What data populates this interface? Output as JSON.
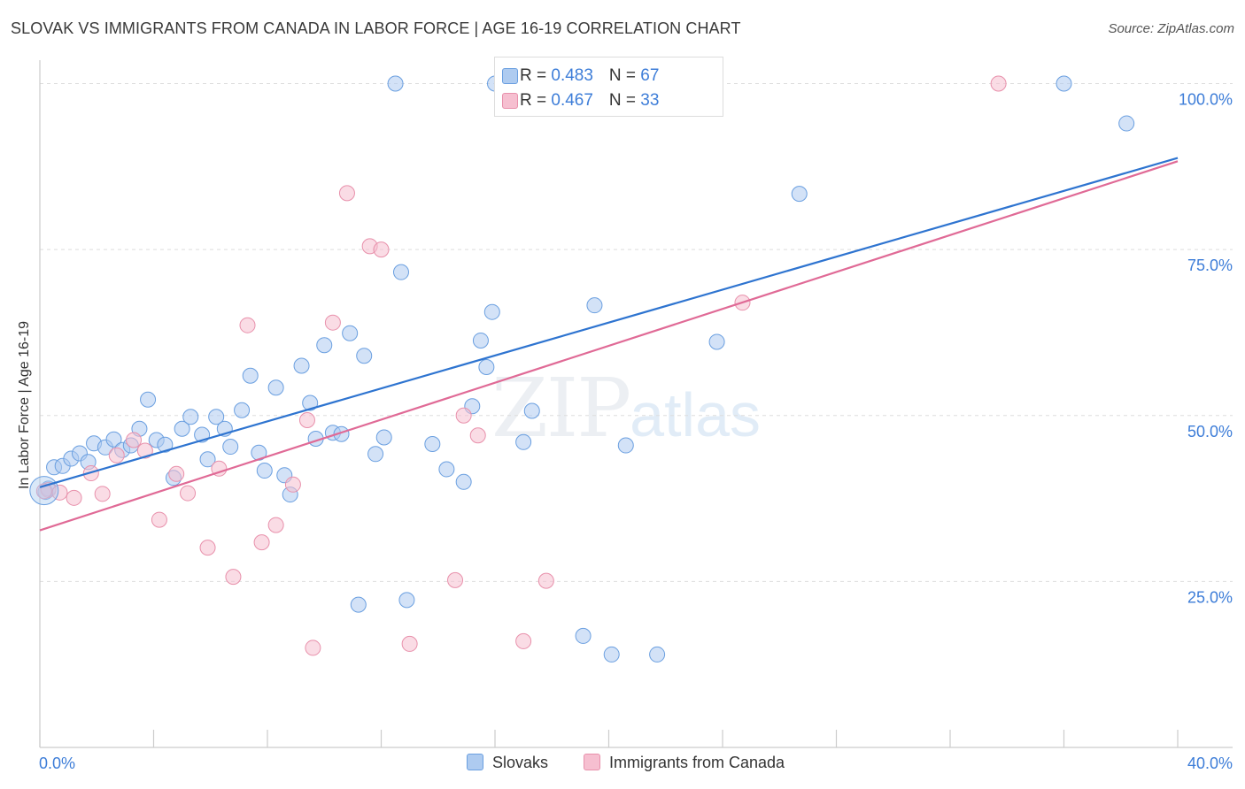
{
  "header": {
    "title": "SLOVAK VS IMMIGRANTS FROM CANADA IN LABOR FORCE | AGE 16-19 CORRELATION CHART",
    "source": "Source: ZipAtlas.com"
  },
  "watermark": {
    "zip": "ZIP",
    "atlas": "atlas"
  },
  "legend": {
    "series1": {
      "r_label": "R = ",
      "r_value": "0.483",
      "n_label": "N = ",
      "n_value": "67"
    },
    "series2": {
      "r_label": "R = ",
      "r_value": "0.467",
      "n_label": "N = ",
      "n_value": "33"
    }
  },
  "colors": {
    "slovak_fill": "#aecbf0",
    "slovak_stroke": "#6a9fe0",
    "slovak_line": "#2e74d0",
    "canada_fill": "#f6bfd0",
    "canada_stroke": "#e890ab",
    "canada_line": "#e06a96",
    "grid": "#dddddd",
    "tick_label": "#3d7dd8"
  },
  "chart_data": {
    "type": "scatter",
    "title": "SLOVAK VS IMMIGRANTS FROM CANADA IN LABOR FORCE | AGE 16-19 CORRELATION CHART",
    "xlabel": "",
    "ylabel": "In Labor Force | Age 16-19",
    "xlim": [
      0,
      40
    ],
    "ylim": [
      0,
      105
    ],
    "x_tick_labels": [
      "0.0%",
      "40.0%"
    ],
    "y_ticks": [
      25,
      50,
      75,
      100
    ],
    "y_tick_labels": [
      "25.0%",
      "50.0%",
      "75.0%",
      "100.0%"
    ],
    "grid": true,
    "legend_position": "top-center",
    "series": [
      {
        "name": "Slovaks",
        "r": 0.483,
        "n": 67,
        "trend": {
          "x": [
            0,
            40
          ],
          "y": [
            39.2,
            88.8
          ]
        },
        "points": [
          [
            0.2,
            38.5
          ],
          [
            0.5,
            42.2
          ],
          [
            0.8,
            42.4
          ],
          [
            1.1,
            43.5
          ],
          [
            1.4,
            44.3
          ],
          [
            1.7,
            43.0
          ],
          [
            1.9,
            45.8
          ],
          [
            2.3,
            45.2
          ],
          [
            2.6,
            46.4
          ],
          [
            2.9,
            44.8
          ],
          [
            3.2,
            45.5
          ],
          [
            3.5,
            48.0
          ],
          [
            3.8,
            52.4
          ],
          [
            4.1,
            46.3
          ],
          [
            4.4,
            45.6
          ],
          [
            4.7,
            40.6
          ],
          [
            5.0,
            48.0
          ],
          [
            5.3,
            49.8
          ],
          [
            5.7,
            47.1
          ],
          [
            5.9,
            43.4
          ],
          [
            6.2,
            49.8
          ],
          [
            6.5,
            48.0
          ],
          [
            6.7,
            45.3
          ],
          [
            7.1,
            50.8
          ],
          [
            7.4,
            56.0
          ],
          [
            7.7,
            44.4
          ],
          [
            7.9,
            41.7
          ],
          [
            8.3,
            54.2
          ],
          [
            8.6,
            41.0
          ],
          [
            8.8,
            38.1
          ],
          [
            9.2,
            57.5
          ],
          [
            9.5,
            51.9
          ],
          [
            9.7,
            46.5
          ],
          [
            10.0,
            60.6
          ],
          [
            10.3,
            47.4
          ],
          [
            10.6,
            47.2
          ],
          [
            10.9,
            62.4
          ],
          [
            11.2,
            21.5
          ],
          [
            11.4,
            59.0
          ],
          [
            11.8,
            44.2
          ],
          [
            12.1,
            46.7
          ],
          [
            12.5,
            100.0
          ],
          [
            12.7,
            71.6
          ],
          [
            12.9,
            22.2
          ],
          [
            13.8,
            45.7
          ],
          [
            14.3,
            41.9
          ],
          [
            14.9,
            40.0
          ],
          [
            15.2,
            51.4
          ],
          [
            15.5,
            61.3
          ],
          [
            15.7,
            57.3
          ],
          [
            15.9,
            65.6
          ],
          [
            16.0,
            100.0
          ],
          [
            16.5,
            100.0
          ],
          [
            17.0,
            46.0
          ],
          [
            17.3,
            50.7
          ],
          [
            19.1,
            16.8
          ],
          [
            19.5,
            66.6
          ],
          [
            20.1,
            14.0
          ],
          [
            20.6,
            45.5
          ],
          [
            21.1,
            100.0
          ],
          [
            21.7,
            14.0
          ],
          [
            23.6,
            100.0
          ],
          [
            23.8,
            61.1
          ],
          [
            26.7,
            83.4
          ],
          [
            36.0,
            100.0
          ],
          [
            38.2,
            94.0
          ],
          [
            0.3,
            39.0
          ]
        ]
      },
      {
        "name": "Immigrants from Canada",
        "r": 0.467,
        "n": 33,
        "trend": {
          "x": [
            0,
            40
          ],
          "y": [
            32.7,
            88.3
          ]
        },
        "points": [
          [
            0.3,
            38.8
          ],
          [
            0.7,
            38.4
          ],
          [
            1.2,
            37.6
          ],
          [
            1.8,
            41.3
          ],
          [
            2.2,
            38.2
          ],
          [
            2.7,
            44.0
          ],
          [
            3.3,
            46.3
          ],
          [
            3.7,
            44.7
          ],
          [
            4.2,
            34.3
          ],
          [
            4.8,
            41.2
          ],
          [
            5.2,
            38.3
          ],
          [
            5.9,
            30.1
          ],
          [
            6.3,
            42.0
          ],
          [
            6.8,
            25.7
          ],
          [
            7.3,
            63.6
          ],
          [
            7.8,
            30.9
          ],
          [
            8.3,
            33.5
          ],
          [
            8.9,
            39.6
          ],
          [
            9.4,
            49.3
          ],
          [
            9.6,
            15.0
          ],
          [
            10.3,
            64.0
          ],
          [
            10.8,
            83.5
          ],
          [
            11.6,
            75.5
          ],
          [
            12.0,
            75.0
          ],
          [
            13.0,
            15.6
          ],
          [
            14.6,
            25.2
          ],
          [
            14.9,
            50.0
          ],
          [
            15.4,
            47.0
          ],
          [
            17.0,
            16.0
          ],
          [
            17.8,
            25.1
          ],
          [
            24.7,
            67.0
          ],
          [
            33.7,
            100.0
          ],
          [
            0.15,
            38.6
          ]
        ]
      }
    ]
  },
  "bottom_legend": {
    "series1_label": "Slovaks",
    "series2_label": "Immigrants from Canada"
  }
}
